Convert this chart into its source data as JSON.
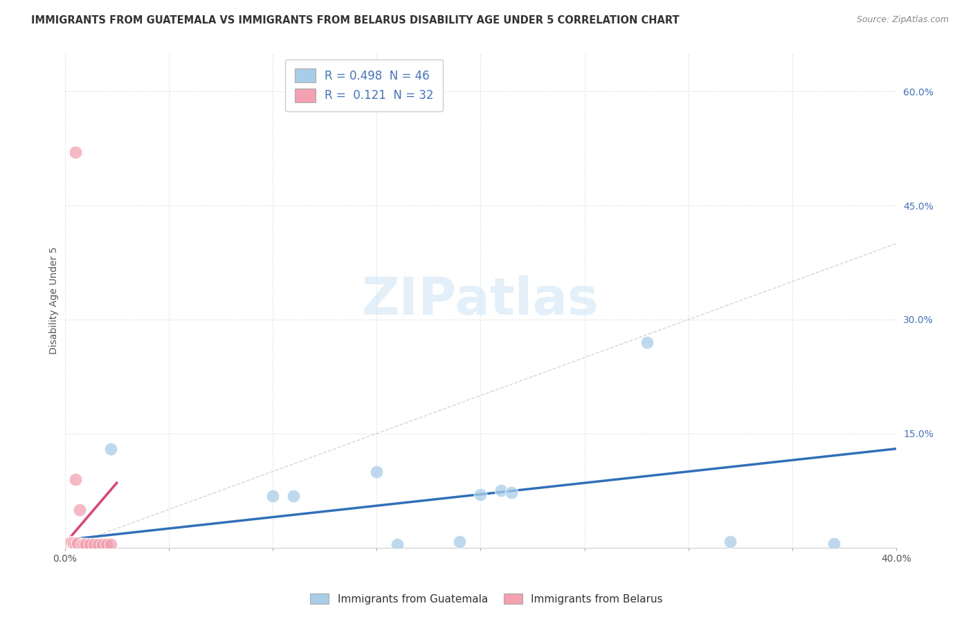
{
  "title": "IMMIGRANTS FROM GUATEMALA VS IMMIGRANTS FROM BELARUS DISABILITY AGE UNDER 5 CORRELATION CHART",
  "source": "Source: ZipAtlas.com",
  "ylabel": "Disability Age Under 5",
  "xlim": [
    0,
    0.4
  ],
  "ylim": [
    0,
    0.65
  ],
  "xticks": [
    0.0,
    0.05,
    0.1,
    0.15,
    0.2,
    0.25,
    0.3,
    0.35,
    0.4
  ],
  "yticks": [
    0.0,
    0.15,
    0.3,
    0.45,
    0.6
  ],
  "xtick_labels": [
    "0.0%",
    "",
    "",
    "",
    "",
    "",
    "",
    "",
    "40.0%"
  ],
  "ytick_labels": [
    "",
    "15.0%",
    "30.0%",
    "45.0%",
    "60.0%"
  ],
  "blue_color": "#a8cde8",
  "pink_color": "#f4a0b0",
  "blue_trend_color": "#3070b8",
  "pink_trend_color": "#e04070",
  "diag_color": "#cccccc",
  "R_blue": 0.498,
  "N_blue": 46,
  "R_pink": 0.121,
  "N_pink": 32,
  "guatemala_x": [
    0.0005,
    0.001,
    0.001,
    0.001,
    0.0015,
    0.002,
    0.002,
    0.002,
    0.002,
    0.003,
    0.003,
    0.003,
    0.003,
    0.004,
    0.004,
    0.004,
    0.005,
    0.005,
    0.005,
    0.006,
    0.006,
    0.007,
    0.007,
    0.008,
    0.008,
    0.009,
    0.01,
    0.01,
    0.011,
    0.012,
    0.014,
    0.015,
    0.017,
    0.02,
    0.022,
    0.1,
    0.11,
    0.15,
    0.16,
    0.19,
    0.2,
    0.21,
    0.215,
    0.28,
    0.32,
    0.37
  ],
  "guatemala_y": [
    0.002,
    0.003,
    0.004,
    0.005,
    0.003,
    0.003,
    0.004,
    0.005,
    0.006,
    0.003,
    0.004,
    0.005,
    0.006,
    0.003,
    0.004,
    0.005,
    0.003,
    0.004,
    0.005,
    0.003,
    0.004,
    0.003,
    0.004,
    0.003,
    0.004,
    0.003,
    0.003,
    0.004,
    0.003,
    0.004,
    0.003,
    0.004,
    0.003,
    0.003,
    0.13,
    0.068,
    0.068,
    0.1,
    0.004,
    0.008,
    0.07,
    0.075,
    0.072,
    0.27,
    0.008,
    0.005
  ],
  "belarus_x": [
    0.0003,
    0.0005,
    0.001,
    0.001,
    0.001,
    0.0015,
    0.0015,
    0.002,
    0.002,
    0.002,
    0.002,
    0.003,
    0.003,
    0.003,
    0.004,
    0.004,
    0.004,
    0.005,
    0.005,
    0.006,
    0.006,
    0.007,
    0.008,
    0.009,
    0.01,
    0.012,
    0.014,
    0.016,
    0.018,
    0.02,
    0.022,
    0.005
  ],
  "belarus_y": [
    0.004,
    0.003,
    0.003,
    0.005,
    0.006,
    0.004,
    0.005,
    0.003,
    0.004,
    0.005,
    0.006,
    0.003,
    0.005,
    0.007,
    0.004,
    0.005,
    0.006,
    0.09,
    0.004,
    0.005,
    0.006,
    0.05,
    0.004,
    0.004,
    0.004,
    0.004,
    0.004,
    0.004,
    0.004,
    0.004,
    0.004,
    0.52
  ],
  "blue_trend_x": [
    0.0,
    0.4
  ],
  "blue_trend_y": [
    0.01,
    0.13
  ],
  "pink_trend_x": [
    0.0,
    0.025
  ],
  "pink_trend_y": [
    0.005,
    0.085
  ]
}
